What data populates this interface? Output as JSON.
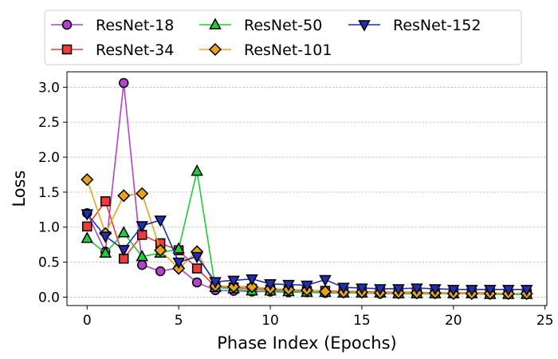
{
  "chart_data": {
    "type": "line",
    "title": "",
    "xlabel": "Phase Index (Epochs)",
    "ylabel": "Loss",
    "xlim": [
      -1.1,
      25.1
    ],
    "ylim": [
      -0.12,
      3.22
    ],
    "xticks": [
      0,
      5,
      10,
      15,
      20,
      25
    ],
    "xtick_labels": [
      "0",
      "5",
      "10",
      "15",
      "20",
      "25"
    ],
    "yticks": [
      0.0,
      0.5,
      1.0,
      1.5,
      2.0,
      2.5,
      3.0
    ],
    "ytick_labels": [
      "0.0",
      "0.5",
      "1.0",
      "1.5",
      "2.0",
      "2.5",
      "3.0"
    ],
    "grid": "horizontal",
    "legend_position": "top-center",
    "x": [
      0,
      1,
      2,
      3,
      4,
      5,
      6,
      7,
      8,
      9,
      10,
      11,
      12,
      13,
      14,
      15,
      16,
      17,
      18,
      19,
      20,
      21,
      22,
      23,
      24
    ],
    "series": [
      {
        "name": "ResNet-18",
        "color": "#b144c8",
        "marker": "circle",
        "values": [
          1.2,
          0.65,
          3.06,
          0.46,
          0.37,
          0.42,
          0.21,
          0.1,
          0.09,
          0.08,
          0.08,
          0.07,
          0.07,
          0.06,
          0.06,
          0.06,
          0.05,
          0.05,
          0.05,
          0.05,
          0.05,
          0.05,
          0.04,
          0.04,
          0.04
        ]
      },
      {
        "name": "ResNet-34",
        "color": "#ee3b3b",
        "marker": "square",
        "values": [
          1.01,
          1.37,
          0.55,
          0.89,
          0.77,
          0.67,
          0.41,
          0.15,
          0.14,
          0.12,
          0.11,
          0.1,
          0.09,
          0.09,
          0.08,
          0.08,
          0.07,
          0.07,
          0.07,
          0.06,
          0.06,
          0.06,
          0.06,
          0.05,
          0.05
        ]
      },
      {
        "name": "ResNet-50",
        "color": "#1fcc3a",
        "marker": "triangle-up",
        "values": [
          0.84,
          0.63,
          0.92,
          0.58,
          0.63,
          0.69,
          1.8,
          0.14,
          0.12,
          0.09,
          0.09,
          0.08,
          0.07,
          0.07,
          0.06,
          0.06,
          0.06,
          0.05,
          0.05,
          0.05,
          0.05,
          0.05,
          0.04,
          0.04,
          0.04
        ]
      },
      {
        "name": "ResNet-101",
        "color": "#e8a21e",
        "marker": "diamond",
        "values": [
          1.68,
          0.91,
          1.45,
          1.48,
          0.67,
          0.41,
          0.65,
          0.16,
          0.15,
          0.15,
          0.12,
          0.11,
          0.1,
          0.08,
          0.07,
          0.07,
          0.06,
          0.06,
          0.06,
          0.06,
          0.05,
          0.05,
          0.05,
          0.05,
          0.05
        ]
      },
      {
        "name": "ResNet-152",
        "color": "#1f2fb0",
        "marker": "triangle-down",
        "values": [
          1.19,
          0.87,
          0.68,
          1.02,
          1.1,
          0.5,
          0.58,
          0.22,
          0.24,
          0.26,
          0.19,
          0.18,
          0.17,
          0.25,
          0.14,
          0.13,
          0.12,
          0.12,
          0.13,
          0.12,
          0.11,
          0.11,
          0.11,
          0.11,
          0.11
        ]
      }
    ]
  }
}
